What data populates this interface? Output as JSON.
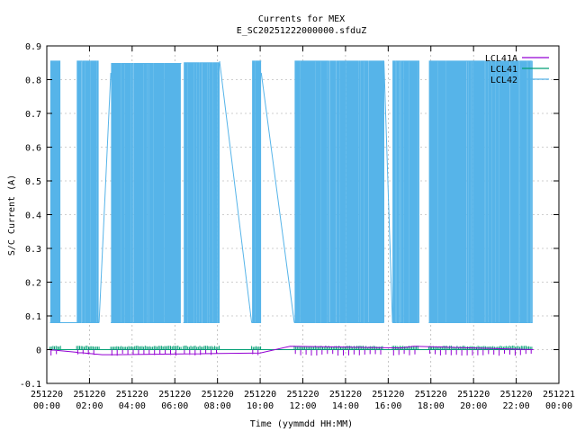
{
  "chart_data": {
    "type": "line",
    "title": "Currents for MEX",
    "subtitle": "E_SC20251222000000.sfduZ",
    "xlabel": "Time (yymmdd HH:MM)",
    "ylabel": "S/C Current (A)",
    "ylim": [
      -0.1,
      0.9
    ],
    "yticks": [
      "-0.1",
      "0",
      "0.1",
      "0.2",
      "0.3",
      "0.4",
      "0.5",
      "0.6",
      "0.7",
      "0.8",
      "0.9"
    ],
    "xlim_hours": [
      0,
      24
    ],
    "xticks": [
      {
        "date": "251220",
        "time": "00:00"
      },
      {
        "date": "251220",
        "time": "02:00"
      },
      {
        "date": "251220",
        "time": "04:00"
      },
      {
        "date": "251220",
        "time": "06:00"
      },
      {
        "date": "251220",
        "time": "08:00"
      },
      {
        "date": "251220",
        "time": "10:00"
      },
      {
        "date": "251220",
        "time": "12:00"
      },
      {
        "date": "251220",
        "time": "14:00"
      },
      {
        "date": "251220",
        "time": "16:00"
      },
      {
        "date": "251220",
        "time": "18:00"
      },
      {
        "date": "251220",
        "time": "20:00"
      },
      {
        "date": "251220",
        "time": "22:00"
      },
      {
        "date": "251221",
        "time": "00:00"
      }
    ],
    "grid": true,
    "legend_position": "top-right",
    "series": [
      {
        "name": "LCL41A",
        "color": "#9400d3",
        "baseline": 0.0,
        "excursions": [
          {
            "t": 2.6,
            "v": -0.015
          },
          {
            "t": 3.1,
            "v": -0.015
          },
          {
            "t": 10.0,
            "v": -0.01
          },
          {
            "t": 11.4,
            "v": 0.01
          },
          {
            "t": 16.6,
            "v": 0.005
          },
          {
            "t": 17.2,
            "v": 0.01
          }
        ]
      },
      {
        "name": "LCL41",
        "color": "#009e73",
        "baseline": 0.0
      },
      {
        "name": "LCL42",
        "color": "#56b4e9",
        "low": 0.08,
        "high": 0.855,
        "active_segments": [
          {
            "start": 0.15,
            "end": 0.65,
            "high": 0.855
          },
          {
            "start": 1.4,
            "end": 2.45,
            "high": 0.855
          },
          {
            "start": 3.0,
            "end": 6.3,
            "high": 0.848
          },
          {
            "start": 6.4,
            "end": 8.1,
            "high": 0.85
          },
          {
            "start": 9.6,
            "end": 10.05,
            "high": 0.855
          },
          {
            "start": 11.6,
            "end": 15.8,
            "high": 0.855
          },
          {
            "start": 16.2,
            "end": 17.45,
            "high": 0.855
          },
          {
            "start": 17.9,
            "end": 22.75,
            "high": 0.855
          }
        ],
        "connectors": [
          {
            "t0": 0.65,
            "v0": 0.08,
            "t1": 1.4,
            "v1": 0.08
          },
          {
            "t0": 2.45,
            "v0": 0.08,
            "t1": 3.0,
            "v1": 0.82
          },
          {
            "t0": 8.1,
            "v0": 0.855,
            "t1": 9.6,
            "v1": 0.08
          },
          {
            "t0": 10.05,
            "v0": 0.82,
            "t1": 11.6,
            "v1": 0.08
          },
          {
            "t0": 15.8,
            "v0": 0.855,
            "t1": 16.2,
            "v1": 0.08
          }
        ]
      }
    ]
  }
}
